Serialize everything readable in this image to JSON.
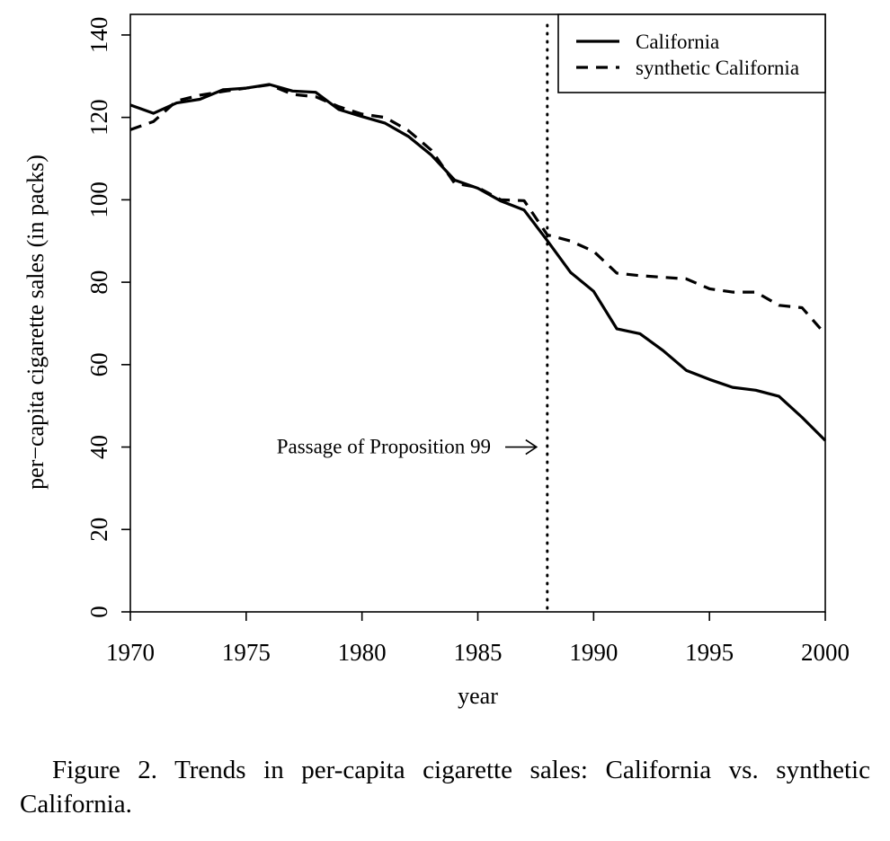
{
  "chart_data": {
    "type": "line",
    "xlabel": "year",
    "ylabel": "per−capita cigarette sales (in packs)",
    "xlim": [
      1970,
      2000
    ],
    "ylim": [
      0,
      145
    ],
    "xticks": [
      1970,
      1975,
      1980,
      1985,
      1990,
      1995,
      2000
    ],
    "yticks": [
      0,
      20,
      40,
      60,
      80,
      100,
      120,
      140
    ],
    "x": [
      1970,
      1971,
      1972,
      1973,
      1974,
      1975,
      1976,
      1977,
      1978,
      1979,
      1980,
      1981,
      1982,
      1983,
      1984,
      1985,
      1986,
      1987,
      1988,
      1989,
      1990,
      1991,
      1992,
      1993,
      1994,
      1995,
      1996,
      1997,
      1998,
      1999,
      2000
    ],
    "series": [
      {
        "name": "California",
        "style": "solid",
        "values": [
          123.0,
          121.0,
          123.5,
          124.4,
          126.7,
          127.1,
          128.0,
          126.4,
          126.1,
          121.9,
          120.2,
          118.6,
          115.4,
          110.8,
          104.8,
          102.8,
          99.7,
          97.5,
          90.1,
          82.4,
          77.8,
          68.7,
          67.5,
          63.4,
          58.6,
          56.4,
          54.5,
          53.8,
          52.3,
          47.2,
          41.6
        ]
      },
      {
        "name": "synthetic California",
        "style": "dashed",
        "values": [
          117.0,
          119.0,
          124.0,
          125.4,
          126.3,
          127.1,
          127.9,
          125.6,
          125.0,
          122.6,
          120.8,
          120.0,
          116.8,
          112.0,
          104.0,
          103.0,
          100.0,
          99.8,
          91.5,
          90.0,
          87.5,
          82.2,
          81.6,
          81.2,
          80.8,
          78.4,
          77.6,
          77.6,
          74.4,
          73.8,
          67.4
        ]
      }
    ],
    "vline": {
      "x": 1988,
      "style": "dotted"
    },
    "annotation": {
      "text": "Passage of Proposition 99",
      "x": 1988,
      "y": 40
    },
    "legend": "top-right",
    "grid": false
  },
  "caption": "Figure 2. Trends in per-capita cigarette sales: California vs. synthetic California.",
  "colors": {
    "line": "#000000",
    "background": "#ffffff"
  }
}
